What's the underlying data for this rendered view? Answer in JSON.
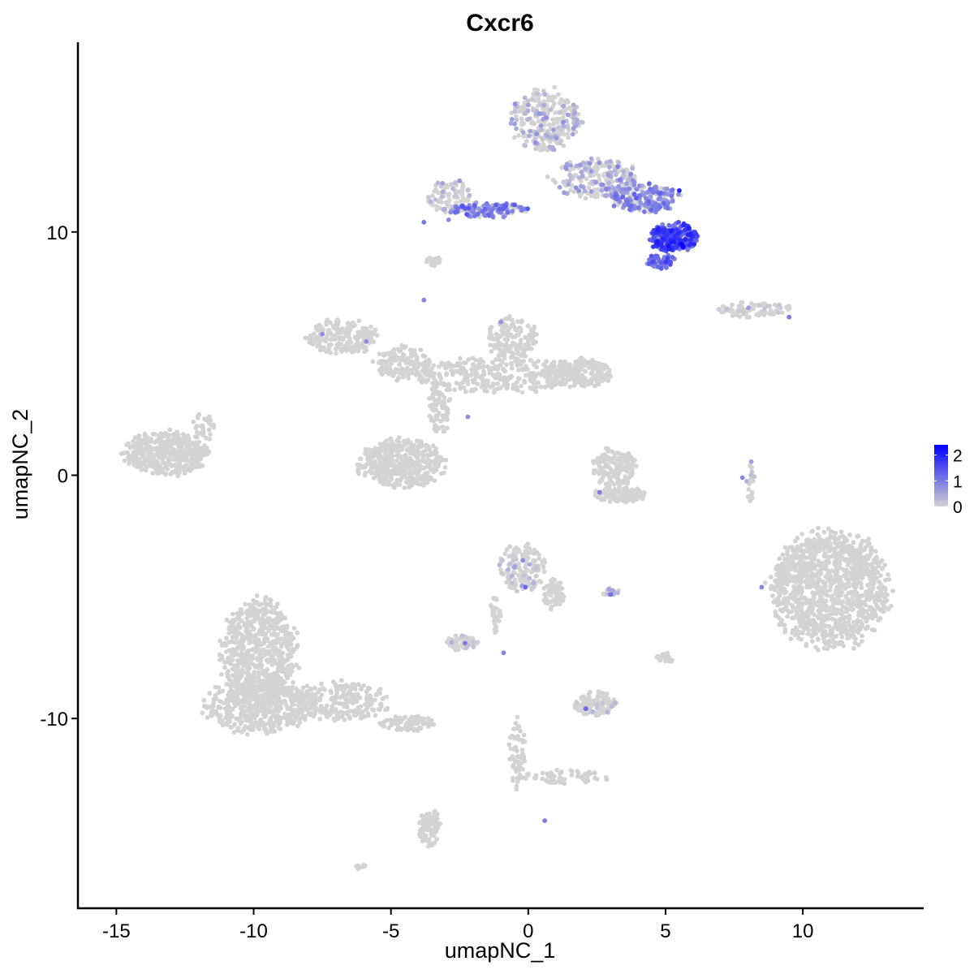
{
  "chart_data": {
    "type": "scatter",
    "title": "Cxcr6",
    "xlabel": "umapNC_1",
    "ylabel": "umapNC_2",
    "xlim": [
      -16.4,
      14.4
    ],
    "ylim": [
      -17.8,
      17.8
    ],
    "xticks": [
      -15,
      -10,
      -5,
      0,
      5,
      10
    ],
    "xtick_labels": [
      "-15",
      "-10",
      "-5",
      "0",
      "5",
      "10"
    ],
    "yticks": [
      -10,
      0,
      10
    ],
    "ytick_labels": [
      "-10",
      "0",
      "10"
    ],
    "grid": false,
    "color_scale": {
      "name": "",
      "low": "#d3d3d3",
      "high": "#0000ff",
      "range": [
        0,
        2.4
      ],
      "breaks": [
        0,
        1,
        2
      ],
      "break_labels": [
        "0",
        "1",
        "2"
      ],
      "legend_position": "right"
    },
    "background_color": "#d3d3d3",
    "clusters": [
      {
        "cx": 0.6,
        "cy": 14.6,
        "rx": 1.3,
        "ry": 1.3,
        "n": 260,
        "expr": 0.35
      },
      {
        "cx": 2.4,
        "cy": 12.2,
        "rx": 1.6,
        "ry": 0.8,
        "n": 220,
        "expr": 0.45
      },
      {
        "cx": 4.2,
        "cy": 11.4,
        "rx": 1.3,
        "ry": 0.6,
        "n": 200,
        "expr": 0.9
      },
      {
        "cx": 5.3,
        "cy": 9.8,
        "rx": 0.9,
        "ry": 0.6,
        "n": 240,
        "expr": 1.6
      },
      {
        "cx": 4.8,
        "cy": 8.8,
        "rx": 0.5,
        "ry": 0.3,
        "n": 60,
        "expr": 1.2
      },
      {
        "cx": -1.5,
        "cy": 10.9,
        "rx": 1.5,
        "ry": 0.3,
        "n": 120,
        "expr": 1.0
      },
      {
        "cx": -2.8,
        "cy": 11.4,
        "rx": 0.9,
        "ry": 0.7,
        "n": 90,
        "expr": 0.05
      },
      {
        "cx": -3.5,
        "cy": 8.8,
        "rx": 0.3,
        "ry": 0.2,
        "n": 20,
        "expr": 0.0
      },
      {
        "cx": 8.2,
        "cy": 6.8,
        "rx": 1.4,
        "ry": 0.3,
        "n": 80,
        "expr": 0.05
      },
      {
        "cx": -6.8,
        "cy": 5.7,
        "rx": 1.3,
        "ry": 0.7,
        "n": 200,
        "expr": 0.0
      },
      {
        "cx": -4.6,
        "cy": 4.6,
        "rx": 1.0,
        "ry": 0.7,
        "n": 140,
        "expr": 0.0
      },
      {
        "cx": -1.2,
        "cy": 4.1,
        "rx": 3.2,
        "ry": 0.7,
        "n": 320,
        "expr": 0.0
      },
      {
        "cx": -0.6,
        "cy": 5.6,
        "rx": 0.9,
        "ry": 0.9,
        "n": 140,
        "expr": 0.0
      },
      {
        "cx": 1.8,
        "cy": 4.2,
        "rx": 1.3,
        "ry": 0.6,
        "n": 200,
        "expr": 0.0
      },
      {
        "cx": -4.6,
        "cy": 0.5,
        "rx": 1.6,
        "ry": 1.0,
        "n": 450,
        "expr": 0.0
      },
      {
        "cx": -3.2,
        "cy": 2.8,
        "rx": 0.4,
        "ry": 1.2,
        "n": 80,
        "expr": 0.0
      },
      {
        "cx": -13.2,
        "cy": 0.9,
        "rx": 1.5,
        "ry": 0.9,
        "n": 450,
        "expr": 0.0
      },
      {
        "cx": -11.8,
        "cy": 2.0,
        "rx": 0.4,
        "ry": 0.6,
        "n": 30,
        "expr": 0.0
      },
      {
        "cx": 3.1,
        "cy": 0.3,
        "rx": 0.8,
        "ry": 0.8,
        "n": 150,
        "expr": 0.0
      },
      {
        "cx": 3.3,
        "cy": -0.8,
        "rx": 1.0,
        "ry": 0.3,
        "n": 120,
        "expr": 0.0
      },
      {
        "cx": 8.1,
        "cy": -0.3,
        "rx": 0.15,
        "ry": 0.8,
        "n": 25,
        "expr": 0.05
      },
      {
        "cx": 11.0,
        "cy": -4.7,
        "rx": 2.2,
        "ry": 2.4,
        "n": 1200,
        "expr": 0.0
      },
      {
        "cx": -0.2,
        "cy": -3.8,
        "rx": 0.8,
        "ry": 1.0,
        "n": 160,
        "expr": 0.05
      },
      {
        "cx": 0.9,
        "cy": -4.9,
        "rx": 0.4,
        "ry": 0.6,
        "n": 60,
        "expr": 0.0
      },
      {
        "cx": -1.2,
        "cy": -5.8,
        "rx": 0.2,
        "ry": 0.8,
        "n": 30,
        "expr": 0.0
      },
      {
        "cx": -2.4,
        "cy": -6.9,
        "rx": 0.6,
        "ry": 0.3,
        "n": 60,
        "expr": 0.05
      },
      {
        "cx": 3.0,
        "cy": -4.8,
        "rx": 0.4,
        "ry": 0.15,
        "n": 20,
        "expr": 0.3
      },
      {
        "cx": 2.4,
        "cy": -9.4,
        "rx": 0.8,
        "ry": 0.5,
        "n": 110,
        "expr": 0.05
      },
      {
        "cx": 5.0,
        "cy": -7.5,
        "rx": 0.3,
        "ry": 0.2,
        "n": 25,
        "expr": 0.0
      },
      {
        "cx": -9.8,
        "cy": -7.4,
        "rx": 1.4,
        "ry": 2.3,
        "n": 700,
        "expr": 0.0
      },
      {
        "cx": -9.8,
        "cy": -9.5,
        "rx": 2.0,
        "ry": 1.1,
        "n": 500,
        "expr": 0.0
      },
      {
        "cx": -6.8,
        "cy": -9.3,
        "rx": 1.8,
        "ry": 0.8,
        "n": 220,
        "expr": 0.0
      },
      {
        "cx": -4.4,
        "cy": -10.2,
        "rx": 1.0,
        "ry": 0.3,
        "n": 80,
        "expr": 0.0
      },
      {
        "cx": -3.6,
        "cy": -14.5,
        "rx": 0.4,
        "ry": 0.8,
        "n": 90,
        "expr": 0.0
      },
      {
        "cx": -0.4,
        "cy": -11.4,
        "rx": 0.3,
        "ry": 1.5,
        "n": 60,
        "expr": 0.0
      },
      {
        "cx": 1.4,
        "cy": -12.4,
        "rx": 1.7,
        "ry": 0.3,
        "n": 60,
        "expr": 0.0
      },
      {
        "cx": -6.1,
        "cy": -16.1,
        "rx": 0.2,
        "ry": 0.15,
        "n": 10,
        "expr": 0.0
      }
    ],
    "notable_points": [
      {
        "x": 5.6,
        "y": 9.5,
        "value": 2.3
      },
      {
        "x": 5.5,
        "y": 11.7,
        "value": 2.0
      },
      {
        "x": 5.3,
        "y": 9.6,
        "value": 2.1
      },
      {
        "x": -3.8,
        "y": 10.4,
        "value": 1.0
      },
      {
        "x": -3.8,
        "y": 7.2,
        "value": 0.9
      },
      {
        "x": -7.5,
        "y": 5.8,
        "value": 0.8
      },
      {
        "x": -5.9,
        "y": 5.5,
        "value": 0.8
      },
      {
        "x": -1.0,
        "y": 6.3,
        "value": 0.7
      },
      {
        "x": -2.2,
        "y": 2.4,
        "value": 0.8
      },
      {
        "x": 9.5,
        "y": 6.5,
        "value": 1.0
      },
      {
        "x": 7.8,
        "y": -0.1,
        "value": 0.9
      },
      {
        "x": 2.6,
        "y": -0.7,
        "value": 1.0
      },
      {
        "x": -0.1,
        "y": -4.6,
        "value": 1.2
      },
      {
        "x": -0.2,
        "y": -3.5,
        "value": 0.8
      },
      {
        "x": 3.0,
        "y": -4.9,
        "value": 1.1
      },
      {
        "x": -2.3,
        "y": -6.9,
        "value": 1.0
      },
      {
        "x": -0.9,
        "y": -7.3,
        "value": 0.9
      },
      {
        "x": 2.1,
        "y": -9.6,
        "value": 1.2
      },
      {
        "x": 8.5,
        "y": -4.6,
        "value": 0.9
      },
      {
        "x": 0.6,
        "y": -14.2,
        "value": 1.0
      },
      {
        "x": -2.5,
        "y": 12.1,
        "value": 0.7
      },
      {
        "x": -2.9,
        "y": 10.5,
        "value": 0.8
      }
    ]
  }
}
